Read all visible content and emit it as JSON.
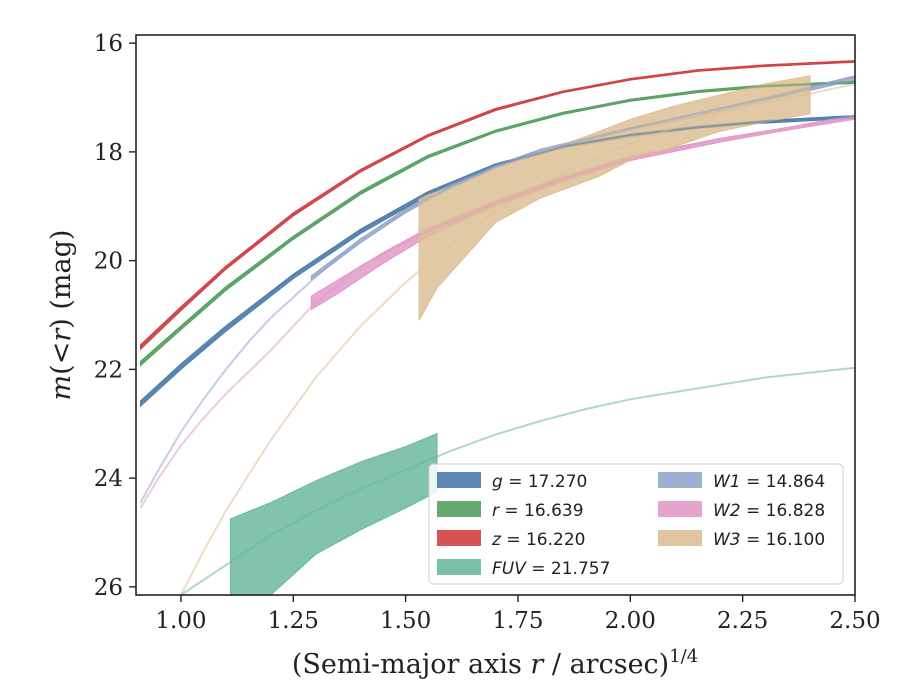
{
  "chart_data": {
    "type": "line",
    "title": "",
    "xlabel": "(Semi-major axis r / arcsec)^{1/4}",
    "xlabel_main": "(Semi-major axis ",
    "xlabel_var": "r",
    "xlabel_rest": " / arcsec)",
    "xlabel_exp": "1/4",
    "ylabel": "m(< r) (mag)",
    "ylabel_parts": [
      "m",
      "(<",
      "r",
      ") (mag)"
    ],
    "xlim": [
      0.9,
      2.5
    ],
    "ylim": [
      26.15,
      15.85
    ],
    "y_inverted": true,
    "grid": false,
    "legend_position": "lower-right",
    "xticks": [
      1.0,
      1.25,
      1.5,
      1.75,
      2.0,
      2.25,
      2.5
    ],
    "xtick_labels": [
      "1.00",
      "1.25",
      "1.50",
      "1.75",
      "2.00",
      "2.25",
      "2.50"
    ],
    "yticks": [
      16,
      18,
      20,
      22,
      24,
      26
    ],
    "ytick_labels": [
      "16",
      "18",
      "20",
      "22",
      "24",
      "26"
    ],
    "series": [
      {
        "name": "g",
        "legend_label": "g = 17.270",
        "color": "#4c7ba8",
        "kind": "measured",
        "upper": [
          [
            0.91,
            22.58
          ],
          [
            1.0,
            21.9
          ],
          [
            1.1,
            21.2
          ],
          [
            1.25,
            20.25
          ],
          [
            1.4,
            19.42
          ],
          [
            1.55,
            18.73
          ],
          [
            1.7,
            18.22
          ],
          [
            1.85,
            17.88
          ],
          [
            2.0,
            17.67
          ],
          [
            2.15,
            17.52
          ],
          [
            2.3,
            17.42
          ],
          [
            2.5,
            17.33
          ]
        ],
        "lower": [
          [
            0.91,
            22.68
          ],
          [
            1.0,
            22.0
          ],
          [
            1.1,
            21.3
          ],
          [
            1.25,
            20.33
          ],
          [
            1.4,
            19.5
          ],
          [
            1.55,
            18.8
          ],
          [
            1.7,
            18.28
          ],
          [
            1.85,
            17.93
          ],
          [
            2.0,
            17.72
          ],
          [
            2.15,
            17.57
          ],
          [
            2.3,
            17.47
          ],
          [
            2.5,
            17.38
          ]
        ]
      },
      {
        "name": "r",
        "legend_label": "r = 16.639",
        "color": "#55a060",
        "kind": "measured",
        "upper": [
          [
            0.91,
            21.85
          ],
          [
            1.0,
            21.2
          ],
          [
            1.1,
            20.48
          ],
          [
            1.25,
            19.55
          ],
          [
            1.4,
            18.72
          ],
          [
            1.55,
            18.06
          ],
          [
            1.7,
            17.6
          ],
          [
            1.85,
            17.27
          ],
          [
            2.0,
            17.03
          ],
          [
            2.15,
            16.87
          ],
          [
            2.3,
            16.77
          ],
          [
            2.5,
            16.7
          ]
        ],
        "lower": [
          [
            0.91,
            21.93
          ],
          [
            1.0,
            21.27
          ],
          [
            1.1,
            20.55
          ],
          [
            1.25,
            19.61
          ],
          [
            1.4,
            18.78
          ],
          [
            1.55,
            18.11
          ],
          [
            1.7,
            17.64
          ],
          [
            1.85,
            17.31
          ],
          [
            2.0,
            17.07
          ],
          [
            2.15,
            16.91
          ],
          [
            2.3,
            16.81
          ],
          [
            2.5,
            16.74
          ]
        ]
      },
      {
        "name": "z",
        "legend_label": "z = 16.220",
        "color": "#d04040",
        "kind": "measured",
        "upper": [
          [
            0.91,
            21.55
          ],
          [
            1.0,
            20.85
          ],
          [
            1.1,
            20.1
          ],
          [
            1.25,
            19.12
          ],
          [
            1.4,
            18.32
          ],
          [
            1.55,
            17.68
          ],
          [
            1.7,
            17.2
          ],
          [
            1.85,
            16.88
          ],
          [
            2.0,
            16.65
          ],
          [
            2.15,
            16.49
          ],
          [
            2.3,
            16.4
          ],
          [
            2.5,
            16.32
          ]
        ],
        "lower": [
          [
            0.91,
            21.63
          ],
          [
            1.0,
            20.92
          ],
          [
            1.1,
            20.16
          ],
          [
            1.25,
            19.18
          ],
          [
            1.4,
            18.37
          ],
          [
            1.55,
            17.72
          ],
          [
            1.7,
            17.24
          ],
          [
            1.85,
            16.91
          ],
          [
            2.0,
            16.68
          ],
          [
            2.15,
            16.52
          ],
          [
            2.3,
            16.43
          ],
          [
            2.5,
            16.35
          ]
        ]
      },
      {
        "name": "FUV",
        "legend_label": "FUV = 21.757",
        "color": "#6cb89e",
        "kind": "measured",
        "upper": [
          [
            1.11,
            24.75
          ],
          [
            1.2,
            24.45
          ],
          [
            1.3,
            24.05
          ],
          [
            1.4,
            23.7
          ],
          [
            1.5,
            23.42
          ],
          [
            1.57,
            23.18
          ]
        ],
        "lower": [
          [
            1.11,
            26.15
          ],
          [
            1.2,
            26.15
          ],
          [
            1.3,
            25.4
          ],
          [
            1.4,
            24.95
          ],
          [
            1.5,
            24.55
          ],
          [
            1.57,
            24.25
          ]
        ]
      },
      {
        "name": "W1",
        "legend_label": "W1 = 14.864",
        "color": "#95a6cc",
        "kind": "measured",
        "upper": [
          [
            1.29,
            20.28
          ],
          [
            1.4,
            19.6
          ],
          [
            1.5,
            19.05
          ],
          [
            1.6,
            18.6
          ],
          [
            1.7,
            18.25
          ],
          [
            1.8,
            17.95
          ],
          [
            1.9,
            17.75
          ],
          [
            2.0,
            17.55
          ],
          [
            2.15,
            17.3
          ],
          [
            2.3,
            17.0
          ],
          [
            2.5,
            16.6
          ]
        ],
        "lower": [
          [
            1.29,
            20.35
          ],
          [
            1.4,
            19.67
          ],
          [
            1.5,
            19.12
          ],
          [
            1.6,
            18.67
          ],
          [
            1.7,
            18.31
          ],
          [
            1.8,
            18.01
          ],
          [
            1.9,
            17.8
          ],
          [
            2.0,
            17.6
          ],
          [
            2.15,
            17.35
          ],
          [
            2.3,
            17.06
          ],
          [
            2.5,
            16.68
          ]
        ]
      },
      {
        "name": "W2",
        "legend_label": "W2 = 16.828",
        "color": "#e29ac8",
        "kind": "measured",
        "upper": [
          [
            1.29,
            20.65
          ],
          [
            1.35,
            20.35
          ],
          [
            1.45,
            19.85
          ],
          [
            1.55,
            19.4
          ],
          [
            1.7,
            18.9
          ],
          [
            1.85,
            18.45
          ],
          [
            2.0,
            18.08
          ],
          [
            2.2,
            17.75
          ],
          [
            2.35,
            17.55
          ],
          [
            2.5,
            17.32
          ]
        ],
        "lower": [
          [
            1.29,
            20.9
          ],
          [
            1.35,
            20.6
          ],
          [
            1.45,
            20.05
          ],
          [
            1.55,
            19.55
          ],
          [
            1.7,
            19.0
          ],
          [
            1.85,
            18.55
          ],
          [
            2.0,
            18.16
          ],
          [
            2.2,
            17.82
          ],
          [
            2.35,
            17.6
          ],
          [
            2.5,
            17.4
          ]
        ]
      },
      {
        "name": "W3",
        "legend_label": "W3 = 16.100",
        "color": "#ddbf95",
        "kind": "measured",
        "upper": [
          [
            1.53,
            18.85
          ],
          [
            1.6,
            18.65
          ],
          [
            1.7,
            18.3
          ],
          [
            1.8,
            18.0
          ],
          [
            1.9,
            17.72
          ],
          [
            2.0,
            17.4
          ],
          [
            2.1,
            17.15
          ],
          [
            2.2,
            16.95
          ],
          [
            2.3,
            16.75
          ],
          [
            2.4,
            16.6
          ]
        ],
        "lower": [
          [
            1.53,
            21.1
          ],
          [
            1.57,
            20.5
          ],
          [
            1.63,
            19.95
          ],
          [
            1.7,
            19.3
          ],
          [
            1.8,
            18.85
          ],
          [
            1.93,
            18.45
          ],
          [
            2.0,
            18.15
          ],
          [
            2.1,
            17.9
          ],
          [
            2.2,
            17.62
          ],
          [
            2.3,
            17.45
          ],
          [
            2.4,
            17.3
          ]
        ]
      },
      {
        "name": "g model",
        "color": "#4c7ba8",
        "kind": "model",
        "points": [
          [
            0.91,
            22.62
          ],
          [
            1.0,
            21.95
          ],
          [
            1.1,
            21.25
          ],
          [
            1.25,
            20.28
          ],
          [
            1.4,
            19.46
          ],
          [
            1.55,
            18.76
          ],
          [
            1.7,
            18.25
          ],
          [
            1.85,
            17.9
          ],
          [
            2.0,
            17.69
          ],
          [
            2.15,
            17.55
          ],
          [
            2.3,
            17.44
          ],
          [
            2.5,
            17.35
          ]
        ]
      },
      {
        "name": "r model",
        "color": "#55a060",
        "kind": "model",
        "points": [
          [
            0.91,
            21.89
          ],
          [
            1.0,
            21.23
          ],
          [
            1.1,
            20.51
          ],
          [
            1.25,
            19.58
          ],
          [
            1.4,
            18.75
          ],
          [
            1.55,
            18.08
          ],
          [
            1.7,
            17.62
          ],
          [
            1.85,
            17.29
          ],
          [
            2.0,
            17.05
          ],
          [
            2.15,
            16.89
          ],
          [
            2.3,
            16.79
          ],
          [
            2.5,
            16.72
          ]
        ]
      },
      {
        "name": "z model",
        "color": "#d04040",
        "kind": "model",
        "points": [
          [
            0.91,
            21.59
          ],
          [
            1.0,
            20.88
          ],
          [
            1.1,
            20.13
          ],
          [
            1.25,
            19.15
          ],
          [
            1.4,
            18.34
          ],
          [
            1.55,
            17.7
          ],
          [
            1.7,
            17.22
          ],
          [
            1.85,
            16.9
          ],
          [
            2.0,
            16.66
          ],
          [
            2.15,
            16.5
          ],
          [
            2.3,
            16.41
          ],
          [
            2.5,
            16.33
          ]
        ]
      },
      {
        "name": "FUV model",
        "color": "#6cb89e",
        "kind": "model",
        "points": [
          [
            1.0,
            26.15
          ],
          [
            1.1,
            25.6
          ],
          [
            1.2,
            25.05
          ],
          [
            1.3,
            24.6
          ],
          [
            1.4,
            24.2
          ],
          [
            1.5,
            23.85
          ],
          [
            1.6,
            23.5
          ],
          [
            1.7,
            23.2
          ],
          [
            1.8,
            22.95
          ],
          [
            1.9,
            22.73
          ],
          [
            2.0,
            22.55
          ],
          [
            2.15,
            22.35
          ],
          [
            2.3,
            22.15
          ],
          [
            2.5,
            21.97
          ]
        ]
      },
      {
        "name": "W1 model",
        "color": "#95a6cc",
        "kind": "model",
        "points": [
          [
            0.91,
            24.45
          ],
          [
            0.95,
            23.85
          ],
          [
            1.0,
            23.15
          ],
          [
            1.05,
            22.55
          ],
          [
            1.1,
            22.0
          ],
          [
            1.15,
            21.5
          ],
          [
            1.2,
            21.05
          ],
          [
            1.3,
            20.3
          ],
          [
            1.4,
            19.6
          ],
          [
            1.55,
            18.85
          ],
          [
            1.7,
            18.27
          ],
          [
            1.85,
            17.87
          ],
          [
            2.0,
            17.57
          ],
          [
            2.2,
            17.2
          ],
          [
            2.35,
            16.93
          ],
          [
            2.5,
            16.62
          ]
        ]
      },
      {
        "name": "W2 model",
        "color": "#e29ac8",
        "kind": "model",
        "points": [
          [
            0.91,
            24.55
          ],
          [
            0.95,
            24.0
          ],
          [
            1.0,
            23.4
          ],
          [
            1.05,
            22.9
          ],
          [
            1.1,
            22.45
          ],
          [
            1.15,
            22.05
          ],
          [
            1.2,
            21.65
          ],
          [
            1.29,
            20.85
          ],
          [
            1.4,
            20.1
          ],
          [
            1.55,
            19.45
          ],
          [
            1.7,
            18.95
          ],
          [
            1.85,
            18.5
          ],
          [
            2.0,
            18.12
          ],
          [
            2.2,
            17.78
          ],
          [
            2.35,
            17.58
          ],
          [
            2.5,
            17.36
          ]
        ]
      },
      {
        "name": "W3 model",
        "color": "#ddbf95",
        "kind": "model",
        "points": [
          [
            1.0,
            26.15
          ],
          [
            1.05,
            25.35
          ],
          [
            1.1,
            24.6
          ],
          [
            1.2,
            23.3
          ],
          [
            1.3,
            22.15
          ],
          [
            1.4,
            21.2
          ],
          [
            1.5,
            20.4
          ],
          [
            1.6,
            19.7
          ],
          [
            1.7,
            19.1
          ],
          [
            1.8,
            18.6
          ],
          [
            1.9,
            18.2
          ],
          [
            2.0,
            17.85
          ],
          [
            2.1,
            17.55
          ],
          [
            2.2,
            17.3
          ],
          [
            2.3,
            17.1
          ],
          [
            2.4,
            16.93
          ],
          [
            2.5,
            16.75
          ]
        ]
      }
    ],
    "legend": [
      {
        "var": "g",
        "value": "17.270",
        "color": "#4c7ba8"
      },
      {
        "var": "r",
        "value": "16.639",
        "color": "#55a060"
      },
      {
        "var": "z",
        "value": "16.220",
        "color": "#d04040"
      },
      {
        "var": "FUV",
        "value": "21.757",
        "color": "#6cb89e"
      },
      {
        "var": "W1",
        "value": "14.864",
        "color": "#95a6cc"
      },
      {
        "var": "W2",
        "value": "16.828",
        "color": "#e29ac8"
      },
      {
        "var": "W3",
        "value": "16.100",
        "color": "#ddbf95"
      }
    ]
  }
}
